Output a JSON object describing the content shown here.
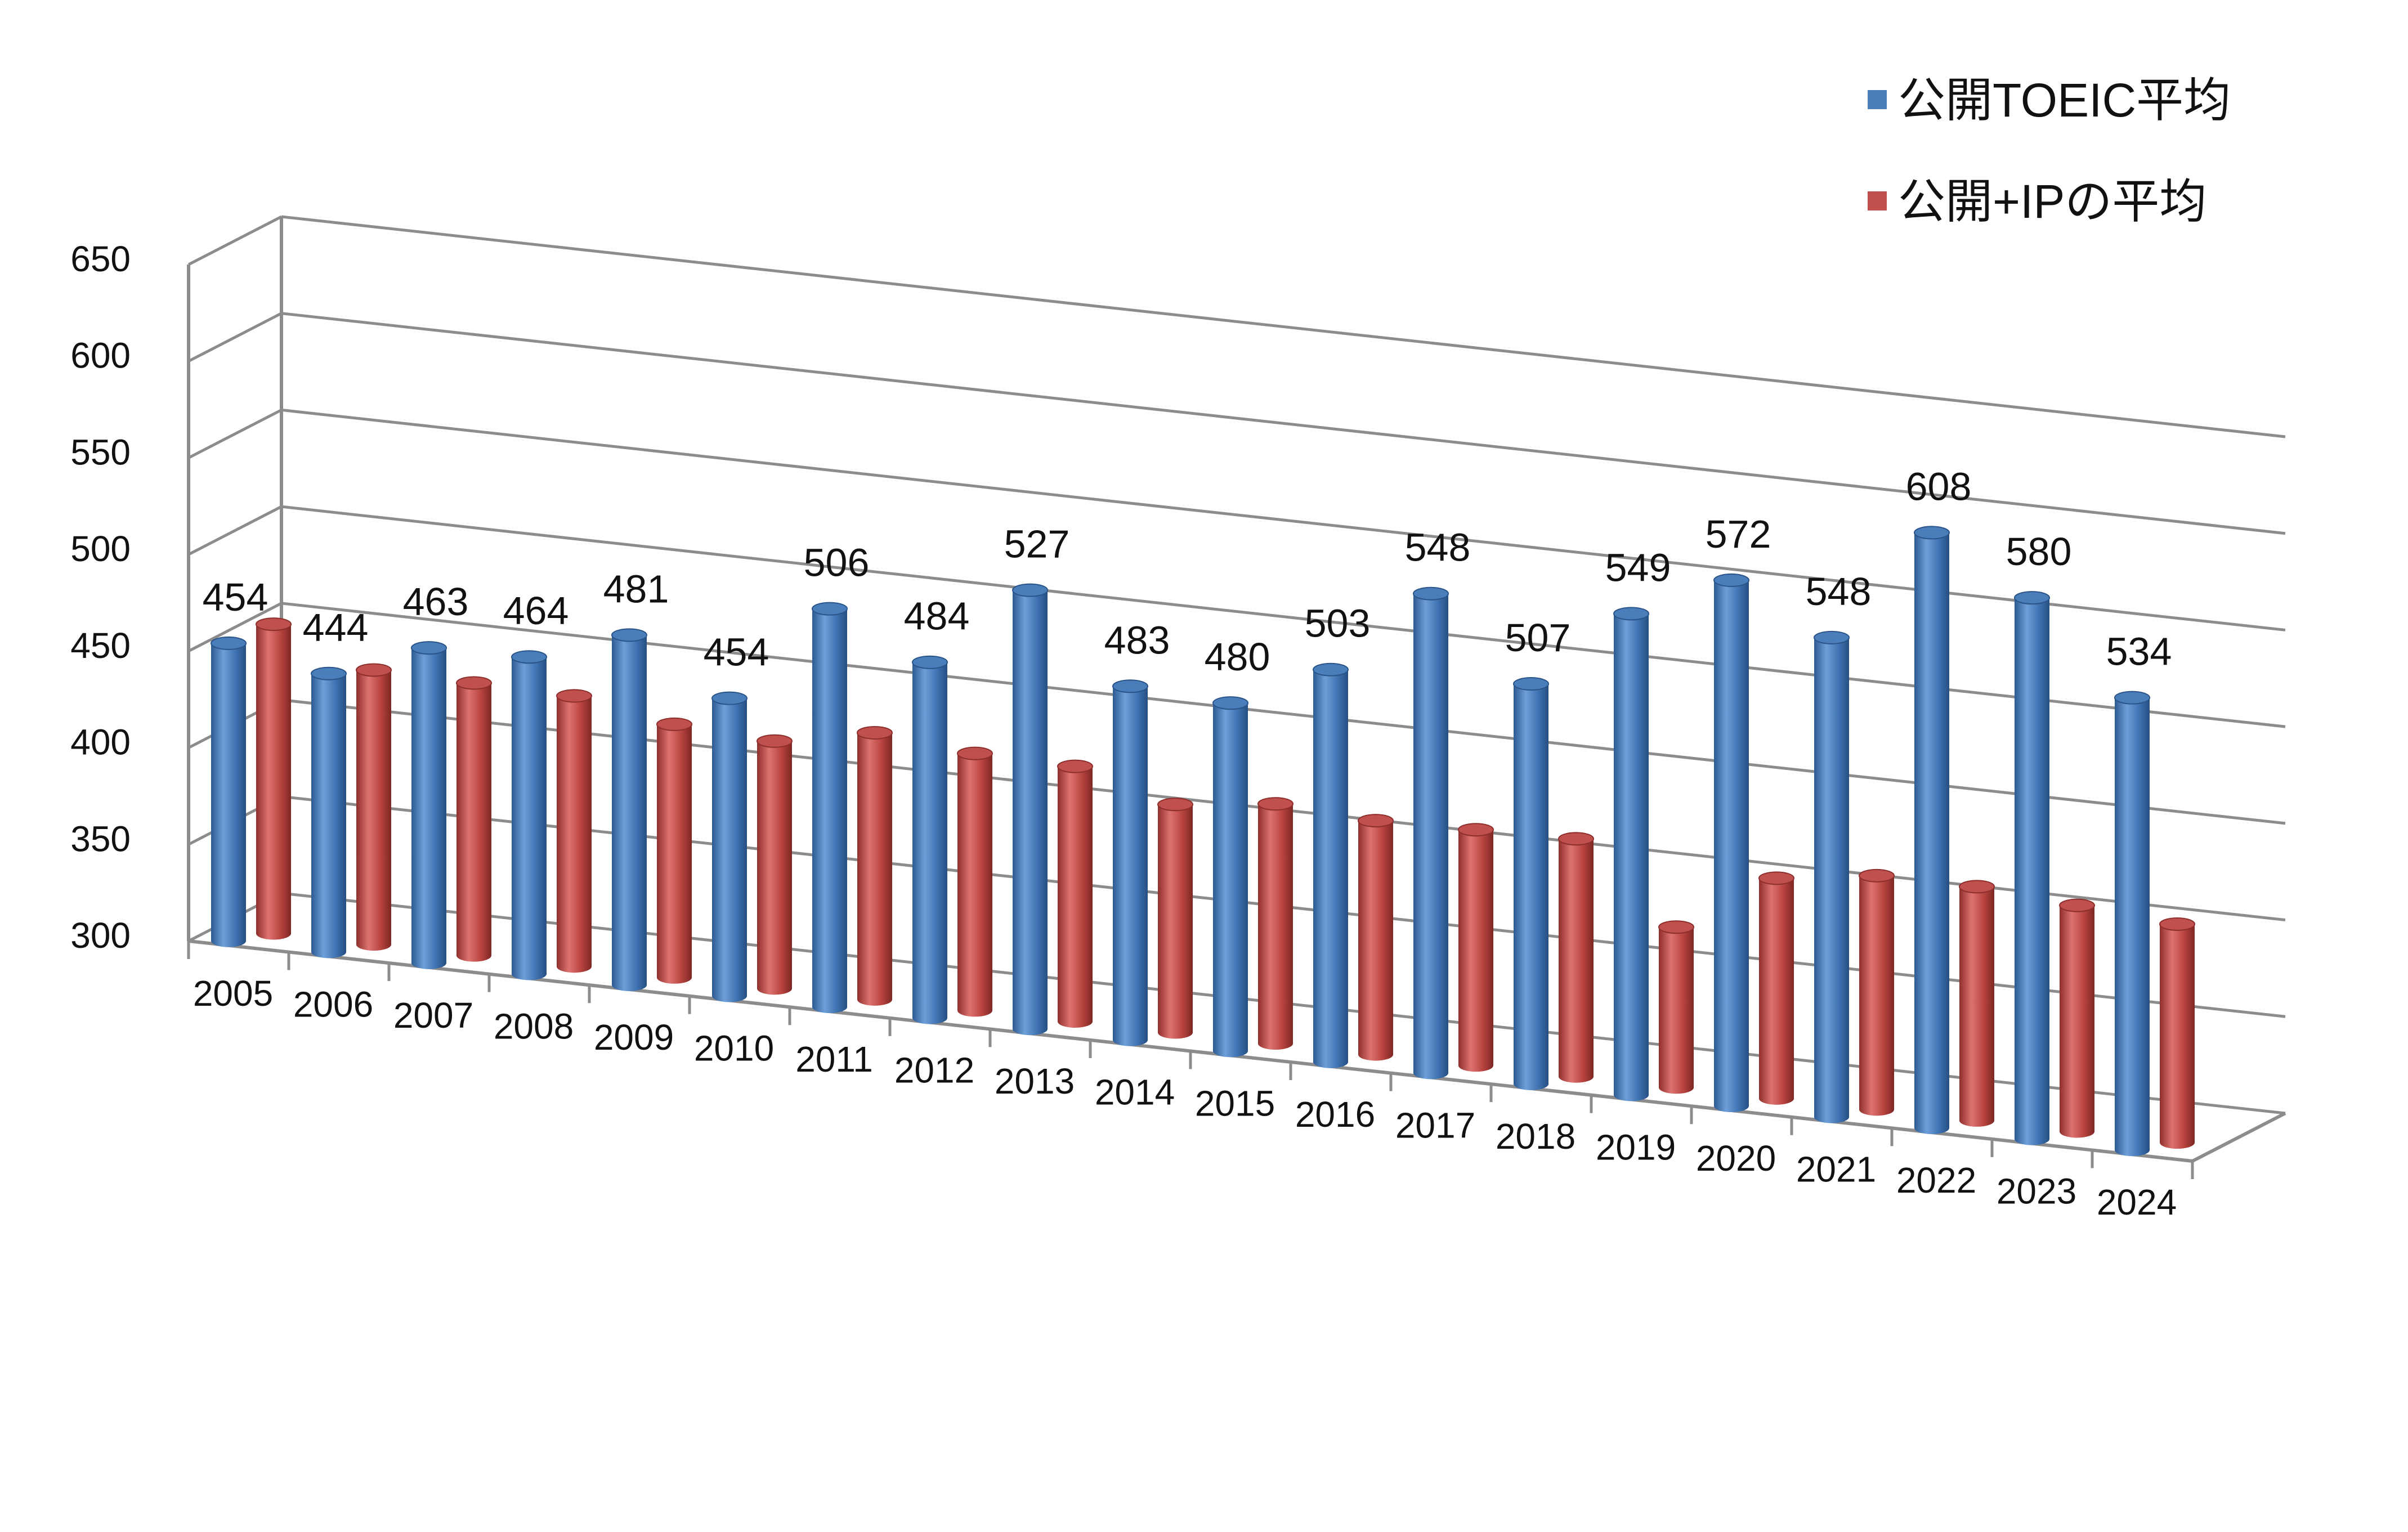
{
  "chart_data": {
    "type": "bar",
    "categories": [
      "2005",
      "2006",
      "2007",
      "2008",
      "2009",
      "2010",
      "2011",
      "2012",
      "2013",
      "2014",
      "2015",
      "2016",
      "2017",
      "2018",
      "2019",
      "2020",
      "2021",
      "2022",
      "2023",
      "2024"
    ],
    "series": [
      {
        "name": "公開TOEIC平均",
        "color": "#4a7ebb",
        "values": [
          454,
          444,
          463,
          464,
          481,
          454,
          506,
          484,
          527,
          483,
          480,
          503,
          548,
          507,
          549,
          572,
          548,
          608,
          580,
          534
        ],
        "labels": [
          "454",
          "444",
          "463",
          "464",
          "481",
          "454",
          "506",
          "484",
          "527",
          "483",
          "480",
          "503",
          "548",
          "507",
          "549",
          "572",
          "548",
          "608",
          "580",
          "534"
        ]
      },
      {
        "name": "公開+IPの平均",
        "color": "#c0504d",
        "values": [
          460,
          442,
          441,
          440,
          431,
          428,
          438,
          433,
          432,
          418,
          424,
          421,
          422,
          423,
          383,
          414,
          421,
          421,
          417,
          413
        ],
        "labels": []
      }
    ],
    "ylim": [
      300,
      650
    ],
    "yticks": [
      300,
      350,
      400,
      450,
      500,
      550,
      600,
      650
    ],
    "grid": true,
    "legend": "top-right"
  }
}
